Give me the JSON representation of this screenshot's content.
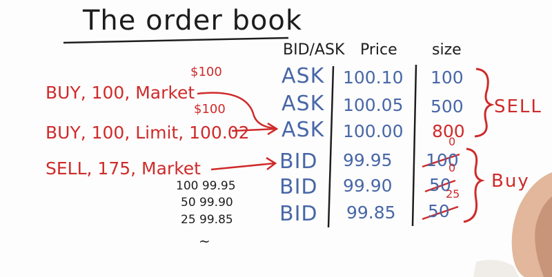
{
  "title": "The order book",
  "headers": {
    "type": "BID/ASK",
    "price": "Price",
    "size": "size"
  },
  "book": [
    {
      "type": "ASK",
      "price": "100.10",
      "size": "100",
      "size_note": ""
    },
    {
      "type": "ASK",
      "price": "100.05",
      "size": "500",
      "size_note": ""
    },
    {
      "type": "ASK",
      "price": "100.00",
      "size": "800",
      "size_note": ""
    },
    {
      "type": "BID",
      "price": "99.95",
      "size": "100",
      "size_note": "0"
    },
    {
      "type": "BID",
      "price": "99.90",
      "size": "50",
      "size_note": "0"
    },
    {
      "type": "BID",
      "price": "99.85",
      "size": "50",
      "size_note": "25"
    }
  ],
  "sides": {
    "sell": "SELL",
    "buy": "Buy"
  },
  "orders": [
    {
      "text": "BUY, 100, Market",
      "note": "$100"
    },
    {
      "text": "BUY, 100, Limit, 100.02",
      "note": "$100"
    },
    {
      "text": "SELL, 175, Market",
      "note": ""
    }
  ],
  "fills": [
    "100  99.95",
    "50  99.90",
    "25  99.85"
  ],
  "scribble": "~",
  "colors": {
    "ink_black": "#1d1d1d",
    "ink_blue": "#4867a7",
    "ink_red": "#cf2a2a"
  }
}
